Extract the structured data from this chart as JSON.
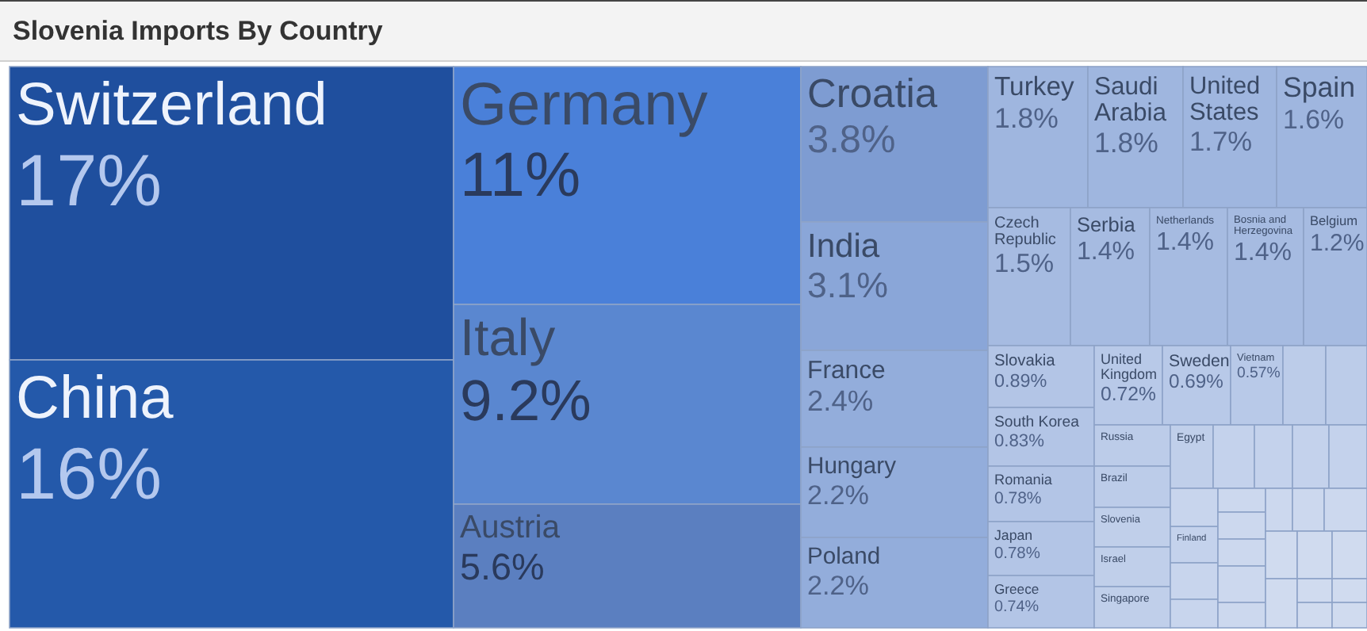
{
  "chart_data": {
    "type": "other",
    "title": "Slovenia Imports By Country",
    "categories": [
      "Switzerland",
      "China",
      "Germany",
      "Italy",
      "Austria",
      "Croatia",
      "India",
      "France",
      "Hungary",
      "Poland",
      "Turkey",
      "Saudi Arabia",
      "United States",
      "Spain",
      "Czech Republic",
      "Serbia",
      "Netherlands",
      "Bosnia and Herzegovina",
      "Belgium",
      "Slovakia",
      "South Korea",
      "Romania",
      "Japan",
      "Greece",
      "United Kingdom",
      "Sweden",
      "Vietnam",
      null,
      null,
      "Russia",
      "Brazil",
      "Slovenia",
      "Israel",
      "Singapore",
      "Egypt",
      null,
      null,
      null,
      null,
      "Finland",
      null,
      null,
      null,
      null,
      null,
      null,
      null,
      null,
      null,
      null,
      null,
      null,
      null,
      null,
      null,
      null,
      null,
      null,
      null
    ],
    "values": [
      17,
      16,
      11,
      9.2,
      5.6,
      3.8,
      3.1,
      2.4,
      2.2,
      2.2,
      1.8,
      1.8,
      1.7,
      1.6,
      1.5,
      1.4,
      1.4,
      1.4,
      1.2,
      0.89,
      0.83,
      0.78,
      0.78,
      0.74,
      0.72,
      0.69,
      0.57,
      null,
      null,
      null,
      null,
      null,
      null,
      null,
      null,
      null,
      null,
      null,
      null,
      null,
      null,
      null,
      null,
      null,
      null,
      null,
      null,
      null,
      null,
      null,
      null,
      null,
      null,
      null,
      null,
      null,
      null,
      null,
      null
    ],
    "value_labels": [
      "17%",
      "16%",
      "11%",
      "9.2%",
      "5.6%",
      "3.8%",
      "3.1%",
      "2.4%",
      "2.2%",
      "2.2%",
      "1.8%",
      "1.8%",
      "1.7%",
      "1.6%",
      "1.5%",
      "1.4%",
      "1.4%",
      "1.4%",
      "1.2%",
      "0.89%",
      "0.83%",
      "0.78%",
      "0.78%",
      "0.74%",
      "0.72%",
      "0.69%",
      "0.57%",
      null,
      null,
      null,
      null,
      null,
      null,
      null,
      null,
      null,
      null,
      null,
      null,
      null,
      null,
      null,
      null,
      null,
      null,
      null,
      null,
      null,
      null,
      null,
      null,
      null,
      null,
      null,
      null,
      null,
      null,
      null,
      null
    ],
    "colors": [
      "#1f4f9e",
      "#2459aa",
      "#4a80d9",
      "#5a87d0",
      "#5b7fc0",
      "#7e9cd2",
      "#8aa6d8",
      "#93addb",
      "#93addb",
      "#93addb",
      "#9fb6df",
      "#9fb6df",
      "#9fb6df",
      "#9fb6df",
      "#a6bbe1",
      "#a6bbe1",
      "#a6bbe1",
      "#a6bbe1",
      "#a6bbe1",
      "#b3c5e6",
      "#b3c5e6",
      "#b3c5e6",
      "#b3c5e6",
      "#b3c5e6",
      "#b8c9e8",
      "#b8c9e8",
      "#b8c9e8",
      "#bccce9",
      "#bccce9",
      "#bccce9",
      "#bccce9",
      "#c0cfea",
      "#c0cfea",
      "#c0cfea",
      "#c0cfea",
      "#c4d2ec",
      "#c4d2ec",
      "#c4d2ec",
      "#c4d2ec",
      "#c4d2ec",
      "#c8d5ed",
      "#c8d5ed",
      "#c8d5ed",
      "#ccd8ee",
      "#ccd8ee",
      "#ccd8ee",
      "#ccd8ee",
      "#ccd8ee",
      "#ccd8ee",
      "#ccd8ee",
      "#ccd8ee",
      "#d0dbef",
      "#d0dbef",
      "#d0dbef",
      "#d0dbef",
      "#d0dbef",
      "#d0dbef",
      "#d0dbef",
      "#d0dbef"
    ]
  }
}
